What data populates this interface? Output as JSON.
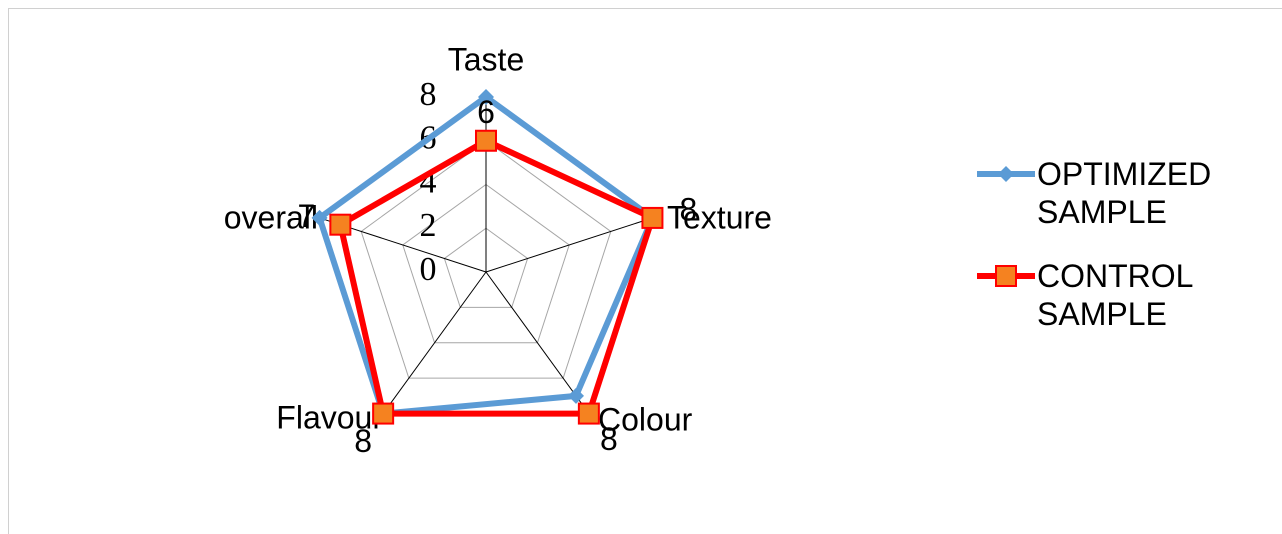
{
  "chart_data": {
    "type": "radar",
    "categories": [
      "Taste",
      "Texture",
      "Colour",
      "Flavour",
      "overall"
    ],
    "series": [
      {
        "name": "OPTIMIZED SAMPLE",
        "color": "#5b9bd5",
        "marker": "diamond",
        "values": [
          8,
          8,
          7,
          8,
          8
        ]
      },
      {
        "name": "CONTROL SAMPLE",
        "color": "#ff0000",
        "marker": "square",
        "marker_fill": "#f58220",
        "values": [
          6,
          8,
          8,
          8,
          7
        ],
        "data_labels": true
      }
    ],
    "rlim": [
      0,
      8
    ],
    "rticks": [
      0,
      2,
      4,
      6,
      8
    ],
    "grid": true,
    "legend": "right"
  }
}
